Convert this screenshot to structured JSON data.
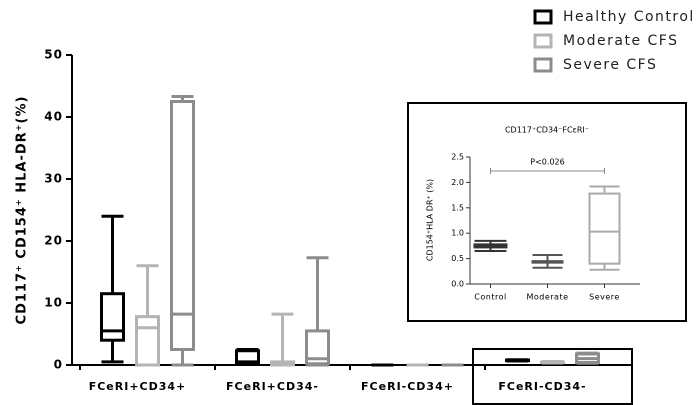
{
  "chart_data": [
    {
      "type": "box",
      "y_label": "CD117⁺ CD154⁺ HLA-DR⁺(%)",
      "categories": [
        "FCeRI+CD34+",
        "FCeRI+CD34-",
        "FCeRI-CD34+",
        "FCeRI-CD34-"
      ],
      "series": [
        {
          "name": "Healthy Control",
          "color": "#000000",
          "min": [
            0.5,
            0.2,
            0,
            0.65
          ],
          "q1": [
            4,
            0.3,
            0,
            0.72
          ],
          "median": [
            5.5,
            0.5,
            0,
            0.75
          ],
          "q3": [
            11.5,
            2.3,
            0,
            0.78
          ],
          "max": [
            24,
            2.5,
            0,
            0.85
          ]
        },
        {
          "name": "Moderate CFS",
          "color": "#b4b4b4",
          "min": [
            0,
            0,
            0,
            0.32
          ],
          "q1": [
            0,
            0,
            0,
            0.42
          ],
          "median": [
            6,
            0.3,
            0,
            0.43
          ],
          "q3": [
            7.8,
            0.5,
            0,
            0.45
          ],
          "max": [
            16,
            8.2,
            0,
            0.57
          ]
        },
        {
          "name": "Severe CFS",
          "color": "#8c8c8c",
          "min": [
            0,
            0,
            0,
            0.28
          ],
          "q1": [
            2.5,
            0.2,
            0,
            0.4
          ],
          "median": [
            8.2,
            1,
            0,
            1.03
          ],
          "q3": [
            42.5,
            5.5,
            0,
            1.78
          ],
          "max": [
            43.3,
            17.3,
            0,
            1.92
          ]
        }
      ],
      "ylim": [
        0,
        50
      ],
      "yticks": [
        0,
        10,
        20,
        30,
        40,
        50
      ]
    },
    {
      "type": "box",
      "title": "CD117⁺CD34⁻FCεRI⁻",
      "y_label": "CD154⁺HLA DR⁺ (%)",
      "categories": [
        "Control",
        "Moderate",
        "Severe"
      ],
      "colors": [
        "#333333",
        "#555555",
        "#aaaaaa"
      ],
      "min": [
        0.65,
        0.32,
        0.28
      ],
      "q1": [
        0.72,
        0.42,
        0.4
      ],
      "median": [
        0.75,
        0.43,
        1.03
      ],
      "q3": [
        0.78,
        0.45,
        1.78
      ],
      "max": [
        0.85,
        0.57,
        1.92
      ],
      "annotation": "P<0.026",
      "ylim": [
        0,
        2.5
      ],
      "yticks": [
        {
          "value": 0,
          "label": "0.0"
        },
        {
          "value": 0.5,
          "label": "0.5"
        },
        {
          "value": 1,
          "label": "1.0"
        },
        {
          "value": 1.5,
          "label": "1.5"
        },
        {
          "value": 2,
          "label": "2.0"
        },
        {
          "value": 2.5,
          "label": "2.5"
        }
      ]
    }
  ]
}
